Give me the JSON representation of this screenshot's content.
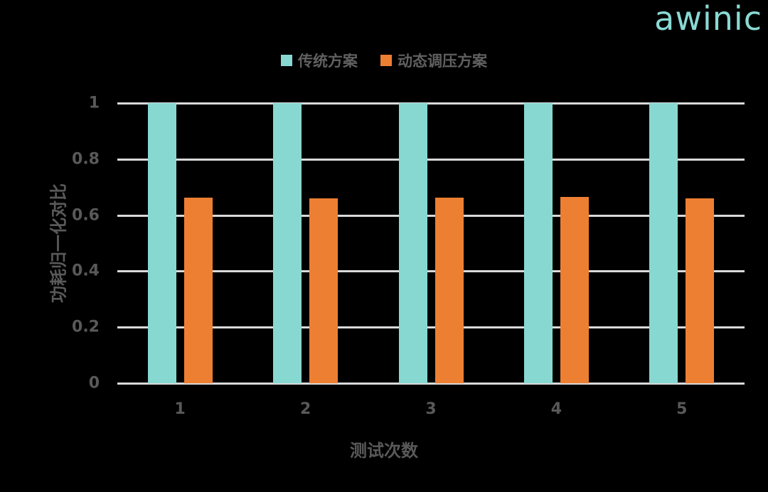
{
  "logo": {
    "text": "awinic",
    "color": "#8ad9d3"
  },
  "chart_data": {
    "type": "bar",
    "title": "",
    "xlabel": "测试次数",
    "ylabel": "功耗归一化对比",
    "categories": [
      "1",
      "2",
      "3",
      "4",
      "5"
    ],
    "series": [
      {
        "name": "传统方案",
        "color": "#88d8d2",
        "values": [
          1,
          1,
          1,
          1,
          1
        ]
      },
      {
        "name": "动态调压方案",
        "color": "#ed7f33",
        "values": [
          0.662,
          0.659,
          0.662,
          0.665,
          0.659
        ]
      }
    ],
    "ylim": [
      0,
      1
    ],
    "yticks": [
      "0",
      "0.2",
      "0.4",
      "0.6",
      "0.8",
      "1"
    ],
    "ytick_values": [
      0,
      0.2,
      0.4,
      0.6,
      0.8,
      1
    ],
    "grid": true,
    "legend_position": "top",
    "background": "#000000",
    "gridline_color": "#d9d9d9",
    "text_color": "#595959"
  }
}
